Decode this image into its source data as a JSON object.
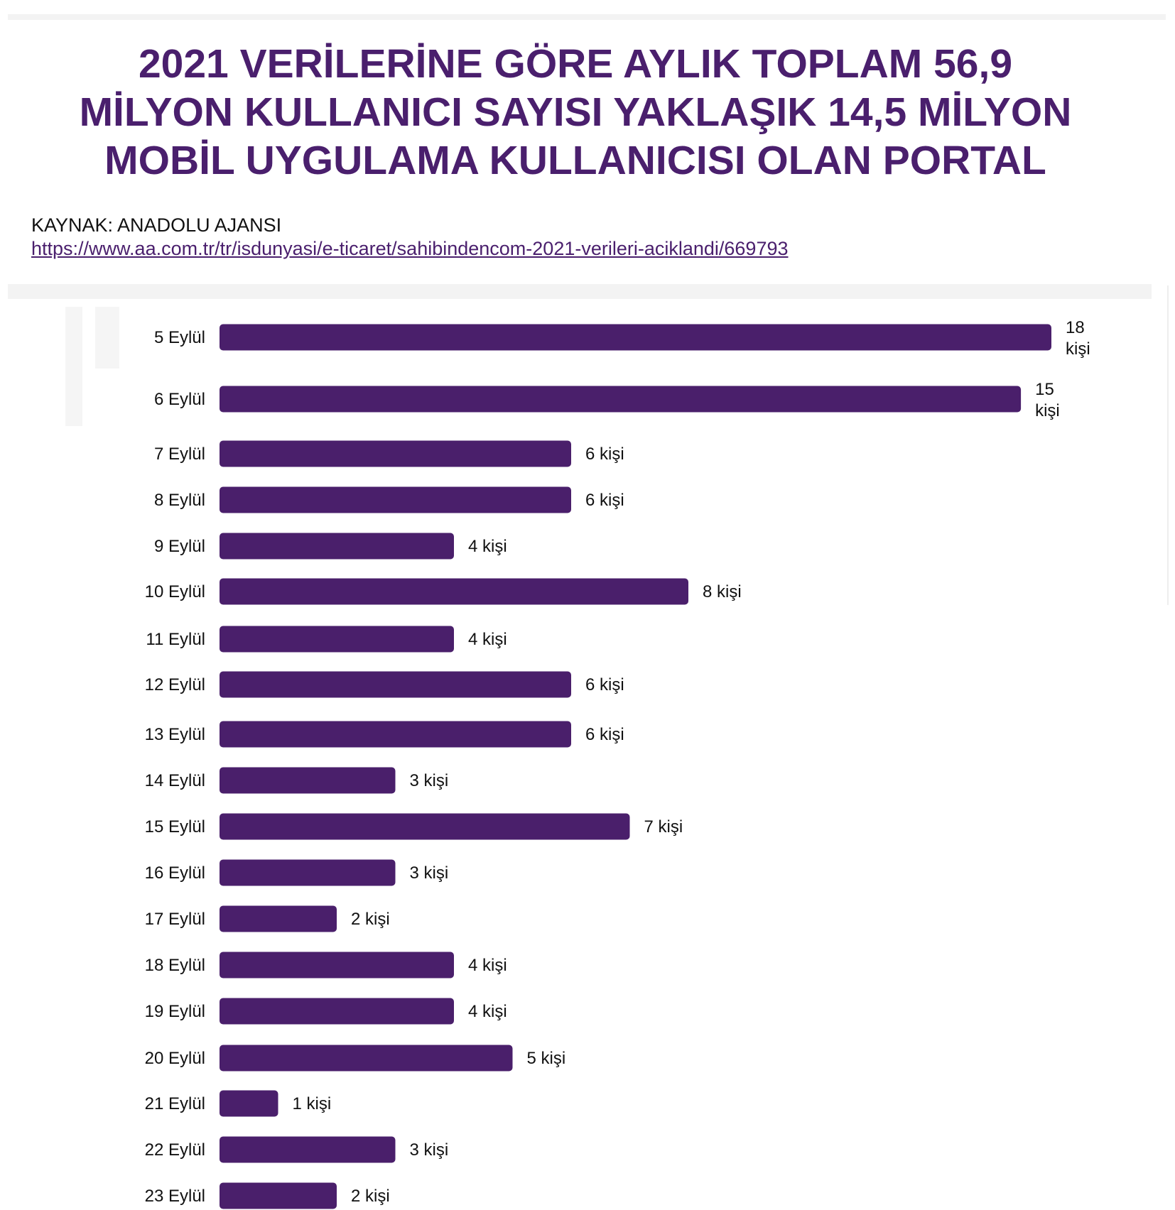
{
  "header": {
    "title_lines": [
      "2021 VERİLERİNE GÖRE AYLIK TOPLAM 56,9",
      "MİLYON KULLANICI SAYISI YAKLAŞIK 14,5 MİLYON",
      "MOBİL UYGULAMA KULLANICISI OLAN PORTAL"
    ],
    "source": "KAYNAK: ANADOLU AJANSI",
    "link": "https://www.aa.com.tr/tr/isdunyasi/e-ticaret/sahibindencom-2021-verileri-aciklandi/669793"
  },
  "chart_data": {
    "type": "bar",
    "orientation": "horizontal",
    "title": "",
    "xlabel": "",
    "ylabel": "",
    "categories": [
      "5 Eylül",
      "6 Eylül",
      "7 Eylül",
      "8 Eylül",
      "9 Eylül",
      "10 Eylül",
      "11 Eylül",
      "12 Eylül",
      "13 Eylül",
      "14 Eylül",
      "15 Eylül",
      "16 Eylül",
      "17 Eylül",
      "18 Eylül",
      "19 Eylül",
      "20 Eylül",
      "21 Eylül",
      "22 Eylül",
      "23 Eylül"
    ],
    "values": [
      18,
      15,
      6,
      6,
      4,
      8,
      4,
      6,
      6,
      3,
      7,
      3,
      2,
      4,
      4,
      5,
      1,
      3,
      2
    ],
    "value_unit": "kişi",
    "bar_color": "#4a1f6b",
    "grid": false,
    "legend": "none"
  }
}
